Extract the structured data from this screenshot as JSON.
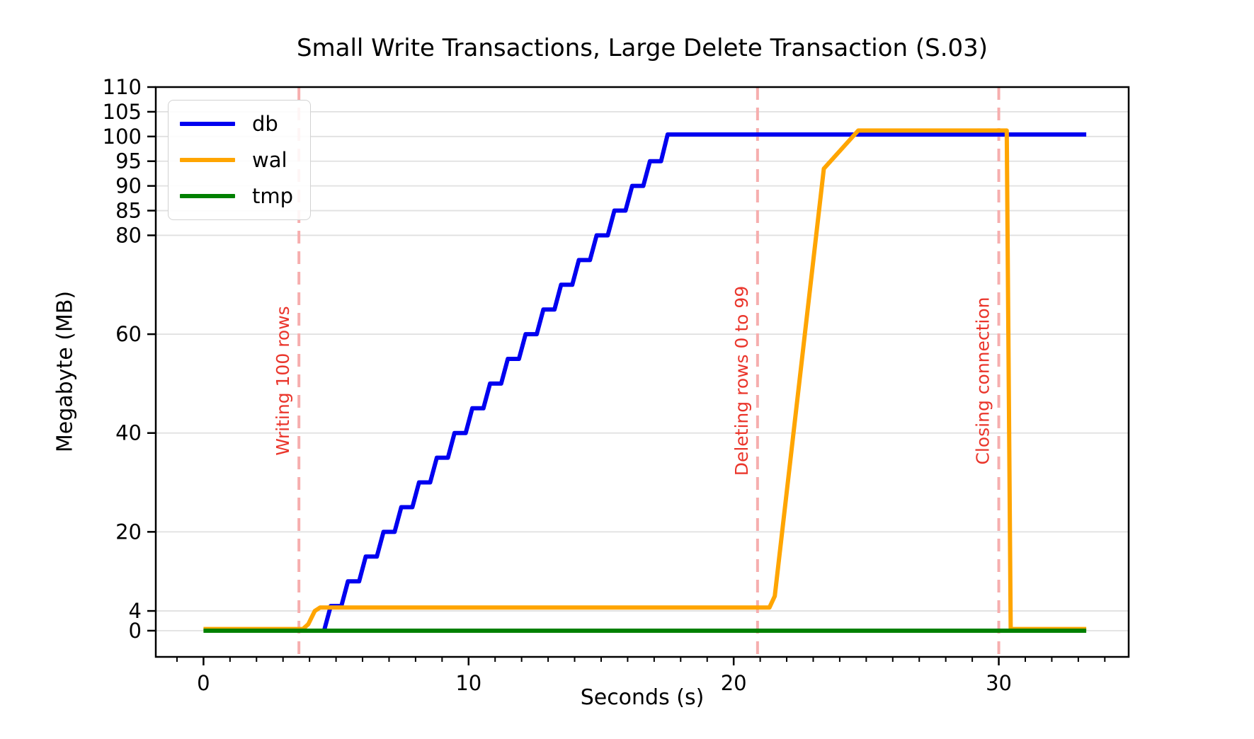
{
  "figure": {
    "title": "Small Write Transactions, Large Delete Transaction (S.03)",
    "xlabel": "Seconds (s)",
    "ylabel": "Megabyte (MB)"
  },
  "chart_data": {
    "type": "line",
    "title": "Small Write Transactions, Large Delete Transaction (S.03)",
    "xlabel": "Seconds (s)",
    "ylabel": "Megabyte (MB)",
    "xlim": [
      -1.8,
      34.9
    ],
    "ylim": [
      -5.3,
      110
    ],
    "x_ticks": [
      0,
      10,
      20,
      30
    ],
    "x_minor_tick_step": 1,
    "y_ticks": [
      0,
      4,
      20,
      40,
      60,
      80,
      85,
      90,
      95,
      100,
      105,
      110
    ],
    "grid": "horizontal",
    "grid_color": "#e0e0e0",
    "legend_position": "upper-left",
    "legend": [
      {
        "label": "db",
        "color": "#0000f0"
      },
      {
        "label": "wal",
        "color": "#ffa500"
      },
      {
        "label": "tmp",
        "color": "#008000"
      }
    ],
    "series": [
      {
        "name": "db",
        "color": "#0000f0",
        "points": [
          [
            4.55,
            0
          ],
          [
            4.8,
            5
          ],
          [
            5.2,
            5
          ],
          [
            5.45,
            10
          ],
          [
            5.87,
            10
          ],
          [
            6.12,
            15
          ],
          [
            6.54,
            15
          ],
          [
            6.79,
            20
          ],
          [
            7.21,
            20
          ],
          [
            7.46,
            25
          ],
          [
            7.88,
            25
          ],
          [
            8.13,
            30
          ],
          [
            8.55,
            30
          ],
          [
            8.8,
            35
          ],
          [
            9.22,
            35
          ],
          [
            9.47,
            40
          ],
          [
            9.89,
            40
          ],
          [
            10.14,
            45
          ],
          [
            10.56,
            45
          ],
          [
            10.81,
            50
          ],
          [
            11.23,
            50
          ],
          [
            11.48,
            55
          ],
          [
            11.9,
            55
          ],
          [
            12.15,
            60
          ],
          [
            12.57,
            60
          ],
          [
            12.82,
            65
          ],
          [
            13.24,
            65
          ],
          [
            13.49,
            70
          ],
          [
            13.91,
            70
          ],
          [
            14.16,
            75
          ],
          [
            14.58,
            75
          ],
          [
            14.83,
            80
          ],
          [
            15.25,
            80
          ],
          [
            15.5,
            85
          ],
          [
            15.92,
            85
          ],
          [
            16.17,
            90
          ],
          [
            16.59,
            90
          ],
          [
            16.84,
            95
          ],
          [
            17.26,
            95
          ],
          [
            17.51,
            100.4
          ],
          [
            33.3,
            100.4
          ]
        ]
      },
      {
        "name": "wal",
        "color": "#ffa500",
        "points": [
          [
            0,
            0.35
          ],
          [
            3.75,
            0.35
          ],
          [
            3.95,
            1.3
          ],
          [
            4.2,
            4.0
          ],
          [
            4.4,
            4.7
          ],
          [
            21.35,
            4.7
          ],
          [
            21.55,
            7
          ],
          [
            23.4,
            93.5
          ],
          [
            24.7,
            101.2
          ],
          [
            30.3,
            101.2
          ],
          [
            30.45,
            0.35
          ],
          [
            33.3,
            0.35
          ]
        ]
      },
      {
        "name": "tmp",
        "color": "#008000",
        "points": [
          [
            0,
            0
          ],
          [
            33.3,
            0
          ]
        ]
      }
    ],
    "annotations": [
      {
        "label": "Writing 100 rows",
        "x": 3.6
      },
      {
        "label": "Deleting rows 0 to 99",
        "x": 20.9
      },
      {
        "label": "Closing connection",
        "x": 30.0
      }
    ],
    "annotation_text_color": "#ea352b",
    "annotation_line_color": "#f6aeae"
  }
}
